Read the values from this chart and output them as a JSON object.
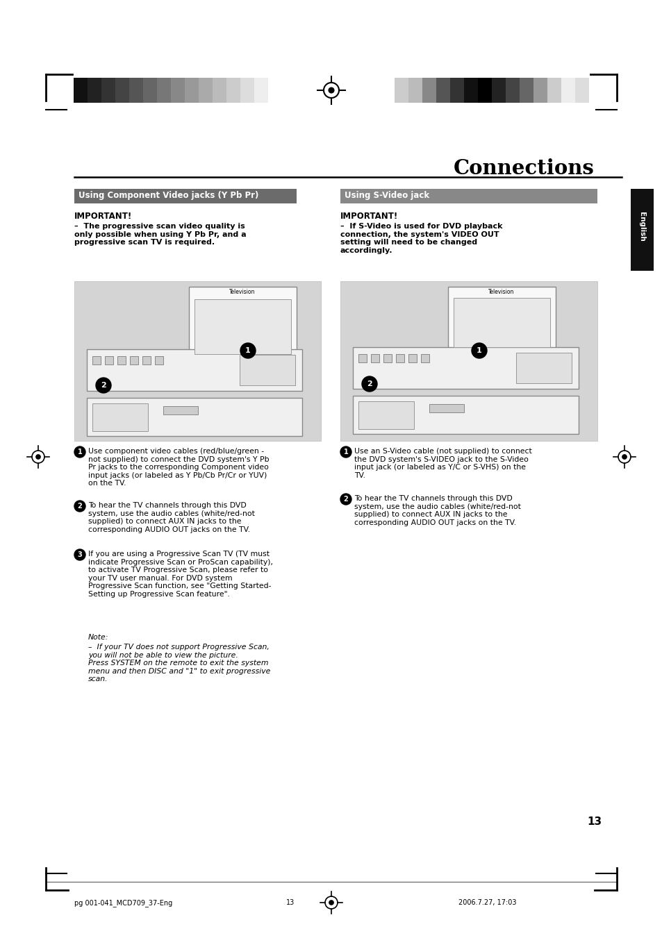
{
  "page_bg": "#ffffff",
  "title": "Connections",
  "title_fontsize": 20,
  "title_fontweight": "bold",
  "title_color": "#000000",
  "header_bar_left_colors": [
    "#111111",
    "#222222",
    "#333333",
    "#444444",
    "#555555",
    "#666666",
    "#777777",
    "#888888",
    "#999999",
    "#aaaaaa",
    "#bbbbbb",
    "#cccccc",
    "#dddddd",
    "#eeeeee"
  ],
  "header_bar_right_colors": [
    "#cccccc",
    "#bbbbbb",
    "#888888",
    "#555555",
    "#333333",
    "#111111",
    "#000000",
    "#222222",
    "#444444",
    "#666666",
    "#999999",
    "#cccccc",
    "#eeeeee",
    "#dddddd"
  ],
  "section1_header": "Using Component Video jacks (Y Pb Pr)",
  "section2_header": "Using S-Video jack",
  "section1_header_bg": "#6b6b6b",
  "section2_header_bg": "#888888",
  "section_header_color": "#ffffff",
  "section_header_fontsize": 8.5,
  "important1_bold": "IMPORTANT!",
  "important1_body": "–  The progressive scan video quality is\nonly possible when using Y Pb Pr, and a\nprogressive scan TV is required.",
  "important2_bold": "IMPORTANT!",
  "important2_body": "–  If S-Video is used for DVD playback\nconnection, the system's VIDEO OUT\nsetting will need to be changed\naccordingly.",
  "body1_text1_num": "1",
  "body1_text1": "Use component video cables (red/blue/green -\nnot supplied) to connect the DVD system's Y Pb\nPr jacks to the corresponding Component video\ninput jacks (or labeled as Y Pb/Cb Pr/Cr or YUV)\non the TV.",
  "body1_text2_num": "2",
  "body1_text2": "To hear the TV channels through this DVD\nsystem, use the audio cables (white/red-not\nsupplied) to connect AUX IN jacks to the\ncorresponding AUDIO OUT jacks on the TV.",
  "body1_text2_bold": "AUX IN",
  "body1_text3_num": "3",
  "body1_text3": "If you are using a Progressive Scan TV (TV must\nindicate Progressive Scan or ProScan capability),\nto activate TV Progressive Scan, please refer to\nyour TV user manual. For DVD system\nProgressive Scan function, see \"Getting Started-\nSetting up Progressive Scan feature\".",
  "note_label": "Note:",
  "note_body": "–  If your TV does not support Progressive Scan,\nyou will not be able to view the picture.\nPress SYSTEM on the remote to exit the system\nmenu and then DISC and \"1\" to exit progressive\nscan.",
  "body2_text1_num": "1",
  "body2_text1": "Use an S-Video cable (not supplied) to connect\nthe DVD system's S-VIDEO jack to the S-Video\ninput jack (or labeled as Y/C or S-VHS) on the\nTV.",
  "body2_text2_num": "2",
  "body2_text2": "To hear the TV channels through this DVD\nsystem, use the audio cables (white/red-not\nsupplied) to connect AUX IN jacks to the\ncorresponding AUDIO OUT jacks on the TV.",
  "body2_text2_bold": "AUX IN",
  "footer_left": "pg 001-041_MCD709_37-Eng",
  "footer_mid": "13",
  "footer_date": "2006.7.27, 17:03",
  "page_number": "13",
  "english_tab_bg": "#111111",
  "english_tab_text": "English",
  "img_bg": "#d4d4d4",
  "img_border": "#bbbbbb",
  "device_bg": "#f0f0f0",
  "device_border": "#888888"
}
